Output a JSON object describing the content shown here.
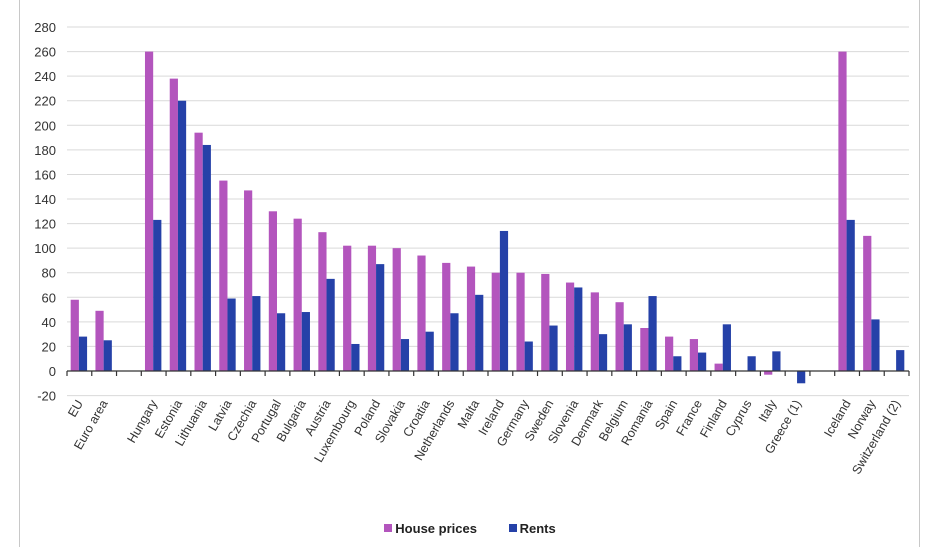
{
  "chart_data": {
    "type": "bar",
    "title": "",
    "xlabel": "",
    "ylabel": "",
    "ylim": [
      -20,
      280
    ],
    "yticks": [
      -20,
      0,
      20,
      40,
      60,
      80,
      100,
      120,
      140,
      160,
      180,
      200,
      220,
      240,
      260,
      280
    ],
    "grid": true,
    "legend_position": "bottom",
    "categories": [
      "EU",
      "Euro area",
      "",
      "Hungary",
      "Estonia",
      "Lithuania",
      "Latvia",
      "Czechia",
      "Portugal",
      "Bulgaria",
      "Austria",
      "Luxembourg",
      "Poland",
      "Slovakia",
      "Croatia",
      "Netherlands",
      "Malta",
      "Ireland",
      "Germany",
      "Sweden",
      "Slovenia",
      "Denmark",
      "Belgium",
      "Romania",
      "Spain",
      "France",
      "Finland",
      "Cyprus",
      "Italy",
      "Greece (1)",
      "",
      "Iceland",
      "Norway",
      "Switzerland (2)"
    ],
    "series": [
      {
        "name": "House prices",
        "color": "#b355bd",
        "values": [
          58,
          49,
          null,
          260,
          238,
          194,
          155,
          147,
          130,
          124,
          113,
          102,
          102,
          100,
          94,
          88,
          85,
          80,
          80,
          79,
          72,
          64,
          56,
          35,
          28,
          26,
          6,
          null,
          -3,
          null,
          null,
          260,
          110,
          null
        ]
      },
      {
        "name": "Rents",
        "color": "#2541a8",
        "values": [
          28,
          25,
          null,
          123,
          220,
          184,
          59,
          61,
          47,
          48,
          75,
          22,
          87,
          26,
          32,
          47,
          62,
          114,
          24,
          37,
          68,
          30,
          38,
          61,
          12,
          15,
          38,
          12,
          16,
          -10,
          null,
          123,
          42,
          17
        ]
      }
    ]
  },
  "legend": {
    "house_prices": "House prices",
    "rents": "Rents"
  },
  "colors": {
    "house_prices": "#b355bd",
    "rents": "#2541a8",
    "grid": "#d9d9d9",
    "axis": "#333333",
    "text": "#333333"
  }
}
